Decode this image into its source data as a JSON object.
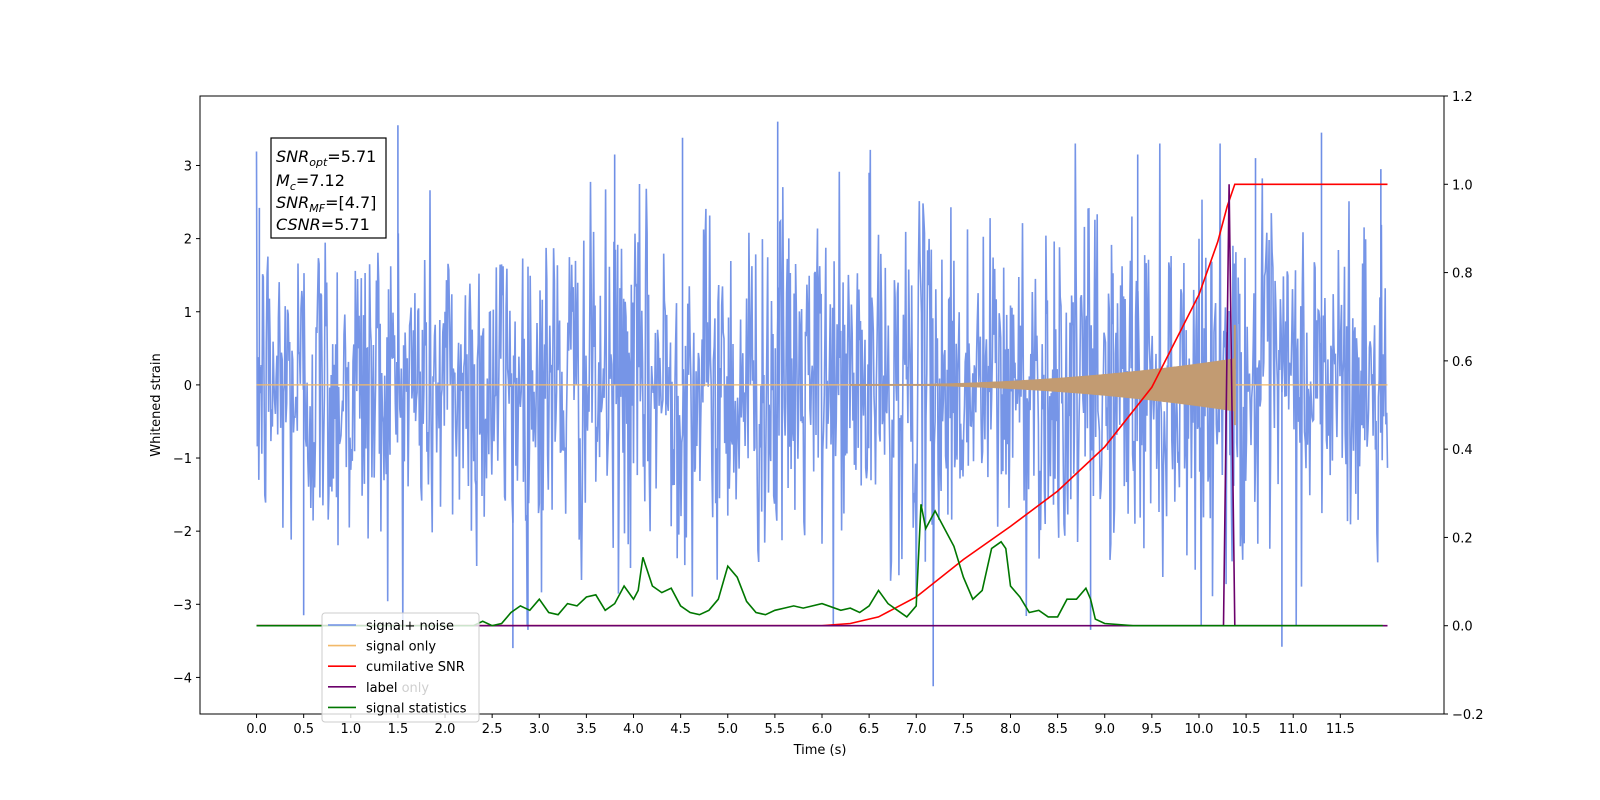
{
  "chart_data": {
    "type": "line",
    "xlabel": "Time (s)",
    "ylabel_left": "Whitened strain",
    "xlim": [
      -0.6,
      12.6
    ],
    "ylim_left": [
      -4.5,
      3.95
    ],
    "ylim_right": [
      -0.2,
      1.2
    ],
    "xticks": [
      "0.0",
      "0.5",
      "1.0",
      "1.5",
      "2.0",
      "2.5",
      "3.0",
      "3.5",
      "4.0",
      "4.5",
      "5.0",
      "5.5",
      "6.0",
      "6.5",
      "7.0",
      "7.5",
      "8.0",
      "8.5",
      "9.0",
      "9.5",
      "10.0",
      "10.5",
      "11.0",
      "11.5"
    ],
    "yticks_left": [
      "3",
      "2",
      "1",
      "0",
      "−1",
      "−2",
      "−3",
      "−4"
    ],
    "yticks_right": [
      "1.2",
      "1.0",
      "0.8",
      "0.6",
      "0.4",
      "0.2",
      "0.0",
      "−0.2"
    ],
    "annotation": {
      "line1": {
        "base": "SNR",
        "sub": "opt",
        "rest": "=5.71"
      },
      "line2": {
        "base": "M",
        "sub": "c",
        "rest": "=7.12"
      },
      "line3": {
        "base": "SNR",
        "sub": "MF",
        "rest": "=[4.7]"
      },
      "line4": {
        "base": "CSNR",
        "rest": "=5.71"
      }
    },
    "legend": {
      "placement": "lower-left",
      "items": [
        {
          "label": "signal+ noise",
          "color": "#6f8fe6"
        },
        {
          "label": "signal only",
          "color": "#f2b969"
        },
        {
          "label": "cumilative SNR",
          "color": "#ff0000"
        },
        {
          "label": "label",
          "color": "#6b006b"
        },
        {
          "label": "signal statistics",
          "color": "#007700"
        }
      ],
      "ghost_text": "label only"
    },
    "series": [
      {
        "name": "signal+ noise",
        "axis": "left",
        "color": "#6f8fe6",
        "x_range": [
          0,
          12.0
        ],
        "envelope_note": "noise, approx. range -4.1 to 3.6"
      },
      {
        "name": "signal only",
        "axis": "left",
        "color": "#c29b72",
        "x_range": [
          0,
          12.0
        ],
        "chirp_start": 6.3,
        "chirp_end": 10.38,
        "peak_amplitude": 0.36
      },
      {
        "name": "cumilative SNR",
        "axis": "right",
        "x": [
          0,
          6.0,
          6.3,
          6.6,
          7.0,
          7.5,
          8.0,
          8.5,
          9.0,
          9.5,
          10.0,
          10.2,
          10.3,
          10.38,
          12.0
        ],
        "y": [
          0,
          0.0,
          0.005,
          0.02,
          0.065,
          0.15,
          0.225,
          0.305,
          0.405,
          0.54,
          0.75,
          0.87,
          0.95,
          1.0,
          1.0
        ]
      },
      {
        "name": "label",
        "axis": "right",
        "x": [
          0,
          10.26,
          10.32,
          10.38,
          12.0
        ],
        "y": [
          0,
          0.0,
          1.0,
          0.0,
          0.0
        ]
      },
      {
        "name": "signal statistics",
        "axis": "right",
        "x": [
          0,
          2.3,
          2.4,
          2.5,
          2.6,
          2.7,
          2.8,
          2.9,
          3.0,
          3.1,
          3.2,
          3.3,
          3.4,
          3.5,
          3.6,
          3.7,
          3.8,
          3.9,
          4.0,
          4.05,
          4.1,
          4.2,
          4.3,
          4.4,
          4.5,
          4.6,
          4.7,
          4.8,
          4.9,
          5.0,
          5.1,
          5.2,
          5.3,
          5.4,
          5.5,
          5.6,
          5.7,
          5.8,
          6.0,
          6.2,
          6.3,
          6.4,
          6.5,
          6.6,
          6.7,
          6.8,
          6.9,
          7.0,
          7.05,
          7.1,
          7.2,
          7.3,
          7.4,
          7.5,
          7.6,
          7.7,
          7.8,
          7.9,
          7.95,
          8.0,
          8.1,
          8.2,
          8.3,
          8.4,
          8.5,
          8.6,
          8.7,
          8.8,
          8.85,
          8.9,
          9.0,
          9.3,
          9.6,
          10.0,
          11.0,
          11.95
        ],
        "y": [
          0,
          0.0,
          0.01,
          0.0,
          0.005,
          0.03,
          0.045,
          0.035,
          0.06,
          0.03,
          0.025,
          0.05,
          0.045,
          0.065,
          0.07,
          0.035,
          0.05,
          0.09,
          0.06,
          0.08,
          0.155,
          0.09,
          0.075,
          0.085,
          0.045,
          0.03,
          0.025,
          0.035,
          0.06,
          0.135,
          0.11,
          0.055,
          0.03,
          0.025,
          0.035,
          0.04,
          0.045,
          0.04,
          0.05,
          0.035,
          0.04,
          0.03,
          0.045,
          0.08,
          0.05,
          0.035,
          0.02,
          0.045,
          0.275,
          0.22,
          0.26,
          0.22,
          0.18,
          0.11,
          0.06,
          0.08,
          0.175,
          0.19,
          0.175,
          0.09,
          0.065,
          0.03,
          0.035,
          0.02,
          0.02,
          0.06,
          0.06,
          0.085,
          0.06,
          0.015,
          0.005,
          0.0,
          0.0,
          0.0,
          0.0,
          0.0
        ]
      }
    ]
  }
}
